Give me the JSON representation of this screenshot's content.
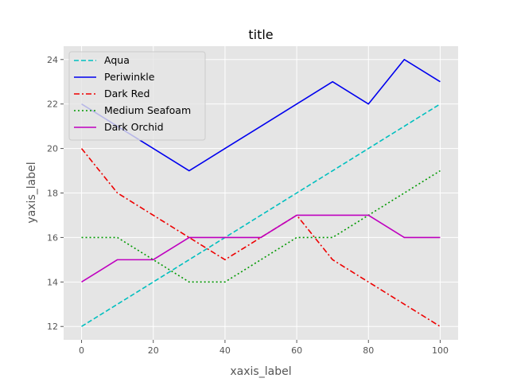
{
  "chart_data": {
    "type": "line",
    "title": "title",
    "xlabel": "xaxis_label",
    "ylabel": "yaxis_label",
    "x": [
      0,
      10,
      20,
      30,
      40,
      50,
      60,
      70,
      80,
      90,
      100
    ],
    "xlim": [
      -5,
      105
    ],
    "ylim": [
      11.4,
      24.6
    ],
    "x_ticks": [
      "0",
      "20",
      "40",
      "60",
      "80",
      "100"
    ],
    "x_tick_values": [
      0,
      20,
      40,
      60,
      80,
      100
    ],
    "y_ticks": [
      "12",
      "14",
      "16",
      "18",
      "20",
      "22",
      "24"
    ],
    "y_tick_values": [
      12,
      14,
      16,
      18,
      20,
      22,
      24
    ],
    "grid": true,
    "legend_position": "top-left",
    "style": "ggplot",
    "series": [
      {
        "name": "Aqua",
        "color": "#00bfbf",
        "dash": "dashed",
        "values": [
          12,
          13,
          14,
          15,
          16,
          17,
          18,
          19,
          20,
          21,
          22
        ]
      },
      {
        "name": "Periwinkle",
        "color": "#0000ee",
        "dash": "solid",
        "values": [
          22,
          21,
          20,
          19,
          20,
          21,
          22,
          23,
          22,
          24,
          23
        ]
      },
      {
        "name": "Dark Red",
        "color": "#ee0000",
        "dash": "dashdot",
        "values": [
          20,
          18,
          17,
          16,
          15,
          16,
          17,
          15,
          14,
          13,
          12
        ]
      },
      {
        "name": "Medium Seafoam",
        "color": "#009900",
        "dash": "dotted",
        "values": [
          16,
          16,
          15,
          14,
          14,
          15,
          16,
          16,
          17,
          18,
          19
        ]
      },
      {
        "name": "Dark Orchid",
        "color": "#bf00bf",
        "dash": "solid",
        "values": [
          14,
          15,
          15,
          16,
          16,
          16,
          17,
          17,
          17,
          16,
          16
        ]
      }
    ]
  }
}
